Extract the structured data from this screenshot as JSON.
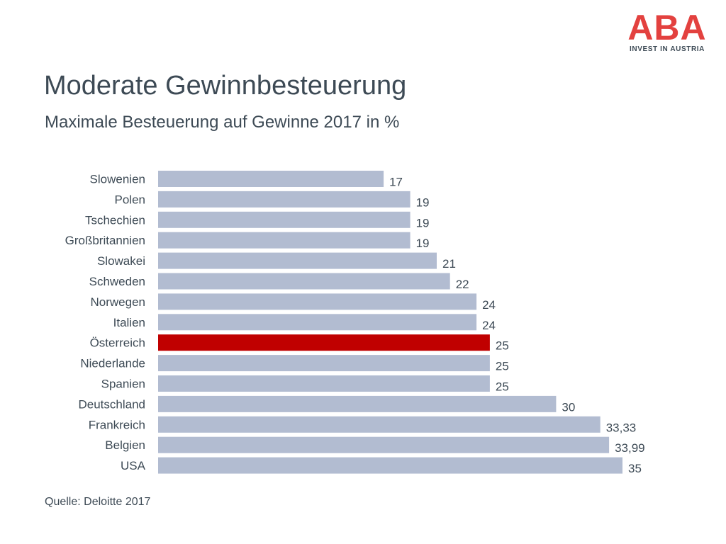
{
  "logo": {
    "mark": "ABA",
    "sub": "INVEST IN AUSTRIA"
  },
  "colors": {
    "bar": "#b2bcd1",
    "highlight": "#c00000",
    "text": "#3d4a55",
    "logo": "#e3413f"
  },
  "chart_data": {
    "type": "bar",
    "orientation": "horizontal",
    "title": "Moderate Gewinnbesteuerung",
    "subtitle": "Maximale Besteuerung auf Gewinne 2017 in %",
    "categories": [
      "Slowenien",
      "Polen",
      "Tschechien",
      "Großbritannien",
      "Slowakei",
      "Schweden",
      "Norwegen",
      "Italien",
      "Österreich",
      "Niederlande",
      "Spanien",
      "Deutschland",
      "Frankreich",
      "Belgien",
      "USA"
    ],
    "values": [
      17,
      19,
      19,
      19,
      21,
      22,
      24,
      24,
      25,
      25,
      25,
      30,
      33.33,
      33.99,
      35
    ],
    "value_labels": [
      "17",
      "19",
      "19",
      "19",
      "21",
      "22",
      "24",
      "24",
      "25",
      "25",
      "25",
      "30",
      "33,33",
      "33,99",
      "35"
    ],
    "highlight": "Österreich",
    "xlim": [
      0,
      35
    ],
    "grid": false,
    "legend": "none"
  },
  "source": "Quelle: Deloitte 2017"
}
